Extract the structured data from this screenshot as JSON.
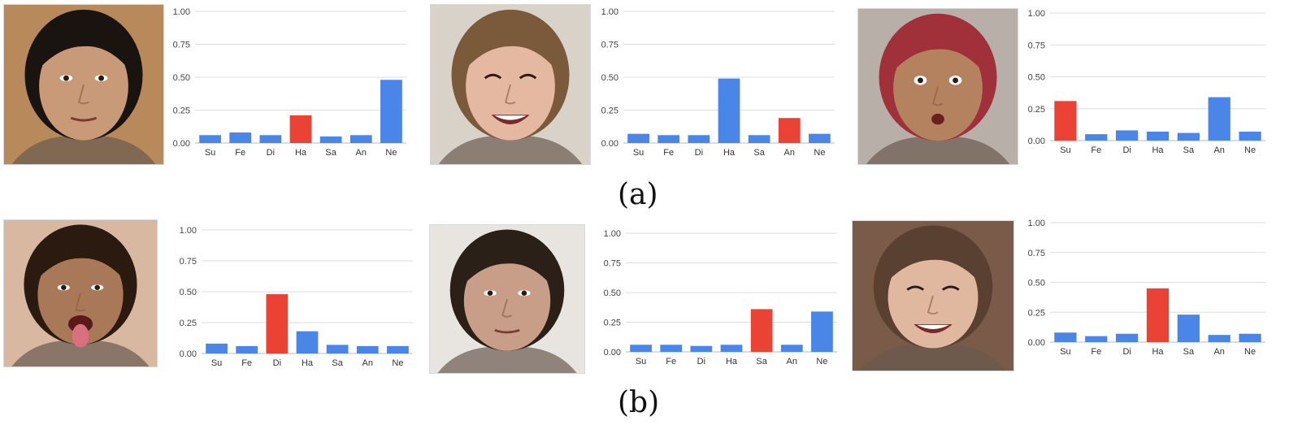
{
  "colors": {
    "base_bar": "#4a86e8",
    "highlight_bar": "#ea4335",
    "gridline": "#dddddd",
    "axis": "#bbbbbb"
  },
  "captions": {
    "row_a": "(a)",
    "row_b": "(b)"
  },
  "faces": [
    {
      "id": "face-a1",
      "skin": "#c89a78",
      "hair": "#1a1410",
      "bg": "#b8895a",
      "expression": "neutral"
    },
    {
      "id": "face-a2",
      "skin": "#e5b8a2",
      "hair": "#7a5a3a",
      "bg": "#d9d2c8",
      "expression": "smile"
    },
    {
      "id": "face-a3",
      "skin": "#b58260",
      "hair": "#a0303a",
      "bg": "#b8b0a8",
      "expression": "surprise"
    },
    {
      "id": "face-b1",
      "skin": "#a87858",
      "hair": "#2a1a10",
      "bg": "#d8b8a0",
      "expression": "tongue"
    },
    {
      "id": "face-b2",
      "skin": "#c89e88",
      "hair": "#2a2018",
      "bg": "#e8e4e0",
      "expression": "neutral"
    },
    {
      "id": "face-b3",
      "skin": "#e0b8a0",
      "hair": "#5a4030",
      "bg": "#7a5a48",
      "expression": "smile"
    }
  ],
  "chart_data": [
    {
      "type": "bar",
      "title": "",
      "xlabel": "",
      "ylabel": "",
      "categories": [
        "Su",
        "Fe",
        "Di",
        "Ha",
        "Sa",
        "An",
        "Ne"
      ],
      "values": [
        0.06,
        0.08,
        0.06,
        0.21,
        0.05,
        0.06,
        0.48
      ],
      "highlight_index": 3,
      "ylim": [
        0,
        1
      ],
      "yticks": [
        "0.00",
        "0.25",
        "0.50",
        "0.75",
        "1.00"
      ],
      "grid": true
    },
    {
      "type": "bar",
      "title": "",
      "xlabel": "",
      "ylabel": "",
      "categories": [
        "Su",
        "Fe",
        "Di",
        "Ha",
        "Sa",
        "An",
        "Ne"
      ],
      "values": [
        0.07,
        0.06,
        0.06,
        0.49,
        0.06,
        0.19,
        0.07
      ],
      "highlight_index": 5,
      "ylim": [
        0,
        1
      ],
      "yticks": [
        "0.00",
        "0.25",
        "0.50",
        "0.75",
        "1.00"
      ],
      "grid": true
    },
    {
      "type": "bar",
      "title": "",
      "xlabel": "",
      "ylabel": "",
      "categories": [
        "Su",
        "Fe",
        "Di",
        "Ha",
        "Sa",
        "An",
        "Ne"
      ],
      "values": [
        0.31,
        0.05,
        0.08,
        0.07,
        0.06,
        0.34,
        0.07
      ],
      "highlight_index": 0,
      "ylim": [
        0,
        1
      ],
      "yticks": [
        "0.00",
        "0.25",
        "0.50",
        "0.75",
        "1.00"
      ],
      "grid": true
    },
    {
      "type": "bar",
      "title": "",
      "xlabel": "",
      "ylabel": "",
      "categories": [
        "Su",
        "Fe",
        "Di",
        "Ha",
        "Sa",
        "An",
        "Ne"
      ],
      "values": [
        0.08,
        0.06,
        0.48,
        0.18,
        0.07,
        0.06,
        0.06
      ],
      "highlight_index": 2,
      "ylim": [
        0,
        1
      ],
      "yticks": [
        "0.00",
        "0.25",
        "0.50",
        "0.75",
        "1.00"
      ],
      "grid": true
    },
    {
      "type": "bar",
      "title": "",
      "xlabel": "",
      "ylabel": "",
      "categories": [
        "Su",
        "Fe",
        "Di",
        "Ha",
        "Sa",
        "An",
        "Ne"
      ],
      "values": [
        0.06,
        0.06,
        0.05,
        0.06,
        0.36,
        0.06,
        0.34
      ],
      "highlight_index": 4,
      "ylim": [
        0,
        1
      ],
      "yticks": [
        "0.00",
        "0.25",
        "0.50",
        "0.75",
        "1.00"
      ],
      "grid": true
    },
    {
      "type": "bar",
      "title": "",
      "xlabel": "",
      "ylabel": "",
      "categories": [
        "Su",
        "Fe",
        "Di",
        "Ha",
        "Sa",
        "An",
        "Ne"
      ],
      "values": [
        0.08,
        0.05,
        0.07,
        0.45,
        0.23,
        0.06,
        0.07
      ],
      "highlight_index": 3,
      "ylim": [
        0,
        1
      ],
      "yticks": [
        "0.00",
        "0.25",
        "0.50",
        "0.75",
        "1.00"
      ],
      "grid": true
    }
  ]
}
